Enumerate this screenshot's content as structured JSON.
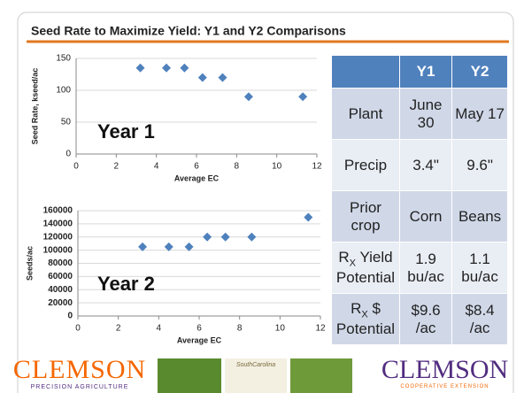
{
  "title": "Seed Rate to Maximize Yield: Y1 and Y2 Comparisons",
  "chart_data": [
    {
      "type": "scatter",
      "annotation": "Year 1",
      "y_label": "Seed Rate, kseed/ac",
      "x_label": "Average EC",
      "color": "#4f81bd",
      "grid": true,
      "x": [
        3.2,
        4.5,
        5.4,
        6.3,
        7.3,
        8.6,
        11.3
      ],
      "values": [
        135,
        135,
        135,
        120,
        120,
        90,
        90
      ],
      "xlim": [
        0,
        12
      ],
      "xticks": [
        0,
        2,
        4,
        6,
        8,
        10,
        12
      ],
      "ylim": [
        0,
        150
      ],
      "yticks": [
        0,
        50,
        100,
        150
      ]
    },
    {
      "type": "scatter",
      "annotation": "Year 2",
      "y_label": "Seeds/ac",
      "x_label": "Average EC",
      "color": "#4f81bd",
      "grid": true,
      "x": [
        3.2,
        4.5,
        5.5,
        6.4,
        7.3,
        8.6,
        11.4
      ],
      "values": [
        105000,
        105000,
        105000,
        120000,
        120000,
        120000,
        150000
      ],
      "xlim": [
        0,
        12
      ],
      "xticks": [
        0,
        2,
        4,
        6,
        8,
        10,
        12
      ],
      "ylim": [
        0,
        160000
      ],
      "yticks": [
        0,
        20000,
        40000,
        60000,
        80000,
        100000,
        120000,
        140000,
        160000
      ]
    }
  ],
  "table": {
    "columns": [
      "Y1",
      "Y2"
    ],
    "rows": [
      {
        "label": {
          "text": "Plant"
        },
        "cells": [
          "June 30",
          "May 17"
        ]
      },
      {
        "label": {
          "text": "Precip"
        },
        "cells": [
          "3.4\"",
          "9.6\""
        ]
      },
      {
        "label": {
          "text": "Prior crop"
        },
        "cells": [
          "Corn",
          "Beans"
        ]
      },
      {
        "label": {
          "base": "R",
          "sub": "X",
          "text": "Yield Potential"
        },
        "cells": [
          "1.9 bu/ac",
          "1.1 bu/ac"
        ]
      },
      {
        "label": {
          "base": "R",
          "sub": "X",
          "text": "$ Potential"
        },
        "cells": [
          "$9.6 /ac",
          "$8.4 /ac"
        ]
      }
    ]
  },
  "logos": {
    "left": "CLEMSON",
    "left_sub": "PRECISION AGRICULTURE",
    "middle": "SouthCarolina",
    "right": "CLEMSON",
    "right_sub": "COOPERATIVE EXTENSION"
  }
}
